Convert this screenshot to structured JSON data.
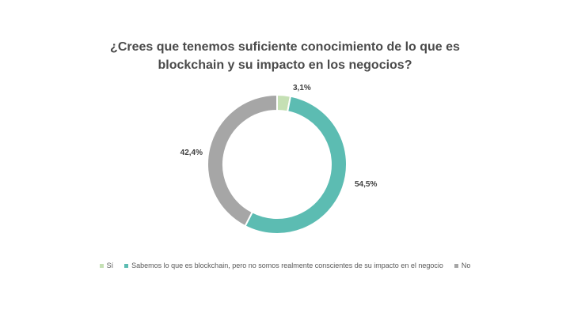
{
  "chart_data": {
    "type": "pie",
    "variant": "donut",
    "title_lines": [
      "¿Crees que tenemos suficiente conocimiento de lo que es",
      "blockchain y su impacto en los negocios?"
    ],
    "categories": [
      "Sí",
      "Sabemos lo que es blockchain, pero no somos realmente conscientes de su impacto en el negocio",
      "No"
    ],
    "values": [
      3.1,
      54.5,
      42.4
    ],
    "data_labels": [
      "3,1%",
      "54,5%",
      "42,4%"
    ],
    "colors": [
      "#c5e0b4",
      "#5cbcb2",
      "#a6a6a6"
    ],
    "legend_position": "bottom"
  }
}
